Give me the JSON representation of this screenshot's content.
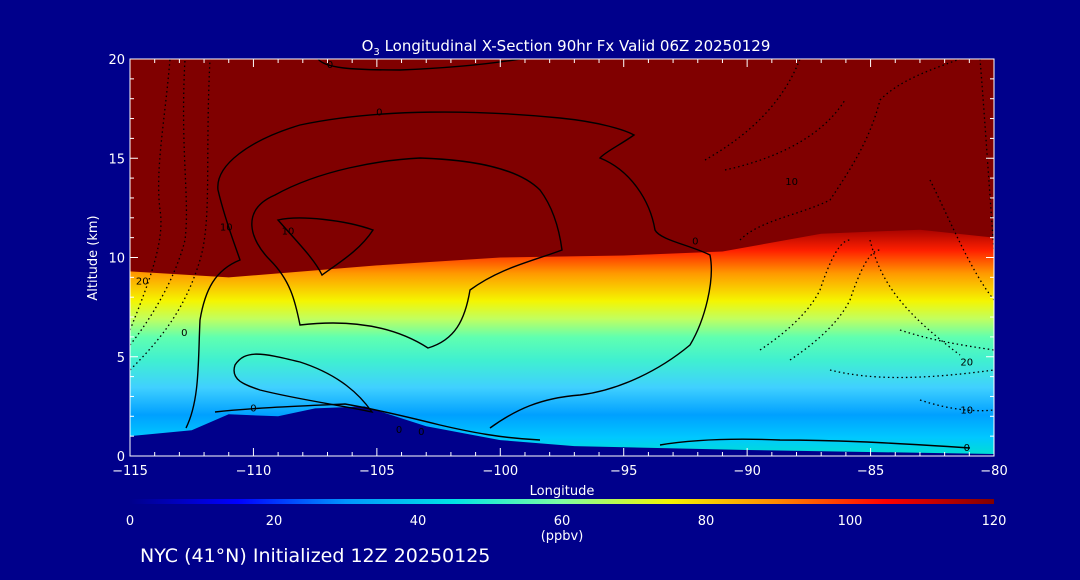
{
  "chart_data": {
    "type": "heatmap",
    "title_prefix": "O",
    "title_subscript": "3",
    "title_suffix": " Longitudinal X-Section 90hr  Fx Valid 06Z 20250129",
    "xlabel": "Longitude",
    "ylabel": "Altitude (km)",
    "xlim": [
      -115,
      -80
    ],
    "ylim": [
      0,
      20
    ],
    "x_ticks": [
      -115,
      -110,
      -105,
      -100,
      -95,
      -90,
      -85,
      -80
    ],
    "x_tick_labels": [
      "−115",
      "−110",
      "−105",
      "−100",
      "−95",
      "−90",
      "−85",
      "−80"
    ],
    "y_ticks": [
      0,
      5,
      10,
      15,
      20
    ],
    "y_tick_labels": [
      "0",
      "5",
      "10",
      "15",
      "20"
    ],
    "colorbar": {
      "min": 0,
      "max": 120,
      "ticks": [
        0,
        20,
        40,
        60,
        80,
        100,
        120
      ],
      "tick_labels": [
        "0",
        "20",
        "40",
        "60",
        "80",
        "100",
        "120"
      ],
      "units": "(ppbv)",
      "colors": [
        "#00008b",
        "#0000ff",
        "#0096ff",
        "#00e5e5",
        "#80ffa0",
        "#f5f500",
        "#ff8800",
        "#ff0000",
        "#800000"
      ]
    },
    "field": {
      "description_colors": "ozone mixing ratio (ppbv)",
      "tropopause_km": [
        {
          "lon": -115,
          "alt": 9.3
        },
        {
          "lon": -111,
          "alt": 9.0
        },
        {
          "lon": -105,
          "alt": 9.6
        },
        {
          "lon": -100,
          "alt": 10.0
        },
        {
          "lon": -95,
          "alt": 10.1
        },
        {
          "lon": -91,
          "alt": 10.3
        },
        {
          "lon": -87,
          "alt": 11.2
        },
        {
          "lon": -83,
          "alt": 11.4
        },
        {
          "lon": -80,
          "alt": 11.0
        }
      ],
      "terrain_km": [
        {
          "lon": -115,
          "alt": 1.0
        },
        {
          "lon": -112.5,
          "alt": 1.3
        },
        {
          "lon": -111,
          "alt": 2.1
        },
        {
          "lon": -109,
          "alt": 2.0
        },
        {
          "lon": -107.5,
          "alt": 2.4
        },
        {
          "lon": -105.5,
          "alt": 2.5
        },
        {
          "lon": -103,
          "alt": 1.5
        },
        {
          "lon": -100,
          "alt": 0.8
        },
        {
          "lon": -97,
          "alt": 0.5
        },
        {
          "lon": -90,
          "alt": 0.3
        },
        {
          "lon": -80,
          "alt": 0.1
        }
      ]
    },
    "contour_labels": [
      "0",
      "0",
      "0",
      "10",
      "10",
      "20",
      "0",
      "0",
      "0",
      "0",
      "10",
      "20",
      "10",
      "0"
    ],
    "contour_label_positions": [
      {
        "lon": -106.9,
        "alt": 19.7
      },
      {
        "lon": -104.9,
        "alt": 17.3
      },
      {
        "lon": -92.1,
        "alt": 10.8
      },
      {
        "lon": -108.6,
        "alt": 11.3
      },
      {
        "lon": -111.1,
        "alt": 11.5
      },
      {
        "lon": -114.5,
        "alt": 8.8
      },
      {
        "lon": -112.8,
        "alt": 6.2
      },
      {
        "lon": -110.0,
        "alt": 2.4
      },
      {
        "lon": -104.1,
        "alt": 1.3
      },
      {
        "lon": -103.2,
        "alt": 1.2
      },
      {
        "lon": -88.2,
        "alt": 13.8
      },
      {
        "lon": -81.1,
        "alt": 4.7
      },
      {
        "lon": -81.1,
        "alt": 2.3
      },
      {
        "lon": -81.1,
        "alt": 0.4
      }
    ],
    "contour_label_texts": [
      "0",
      "0",
      "0",
      "10",
      "10",
      "20",
      "0",
      "0",
      "0",
      "0",
      "10",
      "20",
      "10",
      "0"
    ]
  },
  "footer": {
    "caption": "NYC (41°N) Initialized 12Z 20250125"
  }
}
